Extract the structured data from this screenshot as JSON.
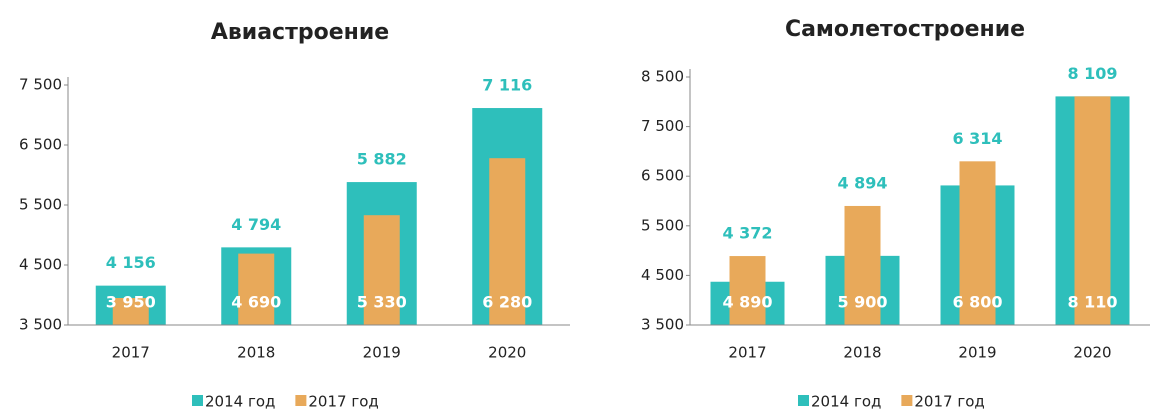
{
  "chart_data": [
    {
      "type": "bar",
      "title": "Авиастроение",
      "categories": [
        "2017",
        "2018",
        "2019",
        "2020"
      ],
      "series": [
        {
          "name": "2014 год",
          "color": "#2ebfbb",
          "values": [
            4156,
            4794,
            5882,
            7116
          ],
          "value_labels": [
            "4 156",
            "4 794",
            "5 882",
            "7 116"
          ]
        },
        {
          "name": "2017 год",
          "color": "#e8a95a",
          "values": [
            3950,
            4690,
            5330,
            6280
          ],
          "value_labels": [
            "3 950",
            "4 690",
            "5 330",
            "6 280"
          ]
        }
      ],
      "ylim": [
        3500,
        7500
      ],
      "yticks": [
        {
          "value": 3500,
          "label": "3 500"
        },
        {
          "value": 4500,
          "label": "4 500"
        },
        {
          "value": 5500,
          "label": "5 500"
        },
        {
          "value": 6500,
          "label": "6 500"
        },
        {
          "value": 7500,
          "label": "7 500"
        }
      ]
    },
    {
      "type": "bar",
      "title": "Самолетостроение",
      "categories": [
        "2017",
        "2018",
        "2019",
        "2020"
      ],
      "series": [
        {
          "name": "2014 год",
          "color": "#2ebfbb",
          "values": [
            4372,
            4894,
            6314,
            8109
          ],
          "value_labels": [
            "4 372",
            "4 894",
            "6 314",
            "8 109"
          ]
        },
        {
          "name": "2017 год",
          "color": "#e8a95a",
          "values": [
            4890,
            5900,
            6800,
            8110
          ],
          "value_labels": [
            "4 890",
            "5 900",
            "6 800",
            "8 110"
          ]
        }
      ],
      "ylim": [
        3500,
        8500
      ],
      "yticks": [
        {
          "value": 3500,
          "label": "3 500"
        },
        {
          "value": 4500,
          "label": "4 500"
        },
        {
          "value": 5500,
          "label": "5 500"
        },
        {
          "value": 6500,
          "label": "6 500"
        },
        {
          "value": 7500,
          "label": "7 500"
        },
        {
          "value": 8500,
          "label": "8 500"
        }
      ]
    }
  ]
}
